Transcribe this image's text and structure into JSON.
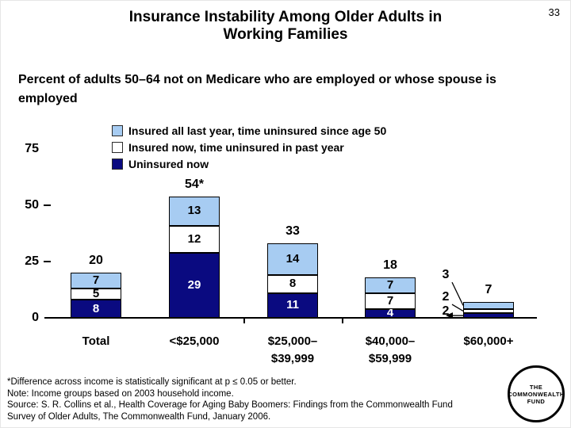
{
  "page_number": "33",
  "title_lines": [
    "Insurance Instability Among Older Adults in",
    "Working Families"
  ],
  "subtitle": "Percent of adults 50–64 not on Medicare who are employed or whose spouse is employed",
  "chart_data": {
    "type": "stacked-bar",
    "categories": [
      "Total",
      "<$25,000",
      "$25,000–$39,999",
      "$40,000–$59,999",
      "$60,000+"
    ],
    "category_lines": [
      [
        "Total"
      ],
      [
        "<$25,000"
      ],
      [
        "$25,000–",
        "$39,999"
      ],
      [
        "$40,000–",
        "$59,999"
      ],
      [
        "$60,000+"
      ]
    ],
    "series": [
      {
        "name": "Uninsured now",
        "color": "#0a0a80",
        "text_color": "#ffffff",
        "values": [
          8,
          29,
          11,
          4,
          2
        ]
      },
      {
        "name": "Insured now, time uninsured in past year",
        "color": "#ffffff",
        "text_color": "#000000",
        "values": [
          5,
          12,
          8,
          7,
          2
        ]
      },
      {
        "name": "Insured all last year, time uninsured since age 50",
        "color": "#a7ccf2",
        "text_color": "#000000",
        "values": [
          7,
          13,
          14,
          7,
          3
        ]
      }
    ],
    "series_order": "bottom-to-top",
    "bar_totals": [
      "20",
      "54*",
      "33",
      "18",
      "7"
    ],
    "legend": [
      {
        "label": "Insured all last year, time uninsured since age 50",
        "color": "#a7ccf2"
      },
      {
        "label": "Insured now, time uninsured in past year",
        "color": "#ffffff"
      },
      {
        "label": "Uninsured now",
        "color": "#0a0a80"
      }
    ],
    "legend_position": "top",
    "grid": false,
    "ylim": [
      0,
      75
    ],
    "yticks": [
      0,
      25,
      50,
      75
    ],
    "xlabel": "",
    "ylabel": ""
  },
  "footnotes": [
    "*Difference across income is statistically significant at p ≤ 0.05 or better.",
    "Note: Income groups based on 2003 household income.",
    "Source: S. R. Collins et al., Health Coverage for Aging Baby Boomers: Findings from the Commonwealth Fund",
    "Survey of Older Adults, The Commonwealth Fund, January 2006."
  ],
  "logo": {
    "lines": [
      "THE",
      "COMMONWEALTH",
      "FUND"
    ]
  }
}
